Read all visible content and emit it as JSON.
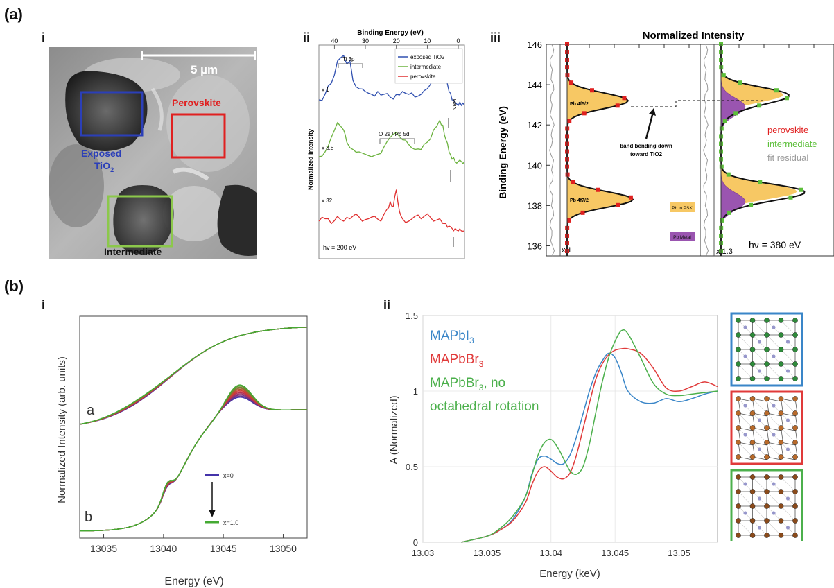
{
  "panel_labels": {
    "a": "(a)",
    "b": "(b)"
  },
  "sub_labels": {
    "ai": "i",
    "aii": "ii",
    "aiii": "iii",
    "bi": "i",
    "bii": "ii"
  },
  "micrograph": {
    "scale_bar": "5 µm",
    "regions": [
      {
        "label": "Exposed",
        "label2": "TiO",
        "sub": "2",
        "color": "#2b3fb8"
      },
      {
        "label": "Perovskite",
        "color": "#e02020"
      },
      {
        "label": "Intermediate",
        "color": "#8cc84b"
      }
    ]
  },
  "chart_data": [
    {
      "type": "line",
      "panel": "a-ii",
      "xlabel": "Binding Energy (eV)",
      "ylabel": "Normalized Intensity",
      "xlim": [
        45,
        -2
      ],
      "x_ticks": [
        40,
        30,
        20,
        10,
        0
      ],
      "legend": [
        "exposed TiO2",
        "intermediate",
        "perovskite"
      ],
      "legend_colors": [
        "#3050b0",
        "#6cb33f",
        "#e03030"
      ],
      "multipliers": [
        "x 1",
        "x 3.8",
        "x 32"
      ],
      "annotations": [
        "Ti 3p",
        "O 2s / Pb 5d",
        "VBM",
        "hv = 200 eV"
      ],
      "series": [
        {
          "name": "exposed TiO2",
          "color": "#3050b0",
          "x": [
            45,
            43,
            41,
            39,
            37,
            36,
            35,
            34,
            32,
            30,
            28,
            26,
            24,
            22,
            20,
            18,
            16,
            14,
            12,
            10,
            8,
            6,
            5,
            4,
            3,
            2,
            1,
            0,
            -1,
            -2
          ],
          "y": [
            0.2,
            0.3,
            0.5,
            0.9,
            1.0,
            0.85,
            0.9,
            0.55,
            0.4,
            0.35,
            0.3,
            0.35,
            0.3,
            0.25,
            0.3,
            0.35,
            0.3,
            0.25,
            0.3,
            0.4,
            0.6,
            0.8,
            0.75,
            0.6,
            0.35,
            0.2,
            0.15,
            0.1,
            0.1,
            0.1
          ]
        },
        {
          "name": "intermediate",
          "color": "#6cb33f",
          "x": [
            45,
            43,
            41,
            39,
            37,
            36,
            34,
            32,
            30,
            28,
            26,
            24,
            22,
            20,
            18,
            16,
            14,
            12,
            10,
            8,
            6,
            5,
            4,
            3,
            2,
            1,
            0,
            -1,
            -2
          ],
          "y": [
            0.2,
            0.3,
            0.6,
            0.9,
            0.75,
            0.5,
            0.35,
            0.3,
            0.25,
            0.2,
            0.25,
            0.4,
            0.6,
            0.7,
            0.55,
            0.45,
            0.35,
            0.35,
            0.5,
            0.75,
            0.95,
            0.85,
            0.55,
            0.3,
            0.15,
            0.1,
            0.1,
            0.1,
            0.1
          ]
        },
        {
          "name": "perovskite",
          "color": "#e03030",
          "x": [
            45,
            43,
            41,
            39,
            37,
            35,
            33,
            31,
            29,
            27,
            25,
            23,
            22,
            21,
            20,
            19,
            18,
            16,
            14,
            12,
            10,
            8,
            6,
            4,
            3,
            2,
            1,
            0,
            -1,
            -2
          ],
          "y": [
            0.3,
            0.35,
            0.25,
            0.4,
            0.3,
            0.35,
            0.45,
            0.3,
            0.35,
            0.4,
            0.3,
            0.55,
            0.7,
            0.6,
            0.95,
            0.5,
            0.35,
            0.3,
            0.4,
            0.35,
            0.45,
            0.3,
            0.35,
            0.25,
            0.2,
            0.15,
            0.15,
            0.1,
            0.1,
            0.1
          ]
        }
      ]
    },
    {
      "type": "area",
      "panel": "a-iii",
      "title": "Normalized Intensity",
      "ylabel": "Binding Energy (eV)",
      "ylim": [
        135.5,
        146
      ],
      "y_ticks": [
        136,
        138,
        140,
        142,
        144,
        146
      ],
      "legend": [
        "perovskite",
        "intermediate",
        "fit residual"
      ],
      "legend_colors": [
        "#e02020",
        "#5cbf3a",
        "#9a9a9a"
      ],
      "peak_labels": [
        "Pb 4f5/2",
        "Pb 4f7/2"
      ],
      "annotations": [
        "band bending down",
        "toward TiO2",
        "Pb in PSK",
        "Pb Metal"
      ],
      "multipliers": [
        "x 1",
        "x 1.3"
      ],
      "photon_energy": "hν = 380 eV",
      "left_peaks_be": [
        143.2,
        138.3
      ],
      "right_peaks_be": [
        143.5,
        138.7
      ],
      "right_metal_peaks_be": [
        142.9,
        138.2
      ]
    },
    {
      "type": "line",
      "panel": "b-i",
      "xlabel": "Energy (eV)",
      "ylabel": "Normalized Intensity (arb. units)",
      "xlim": [
        13033,
        13052
      ],
      "x_ticks": [
        13035,
        13040,
        13045,
        13050
      ],
      "curve_labels": [
        "a",
        "b"
      ],
      "legend": [
        "x=0",
        "x=1.0"
      ],
      "legend_colors": [
        "#4433aa",
        "#44aa33"
      ]
    },
    {
      "type": "line",
      "panel": "b-ii",
      "xlabel": "Energy (keV)",
      "ylabel": "A (Normalized)",
      "xlim": [
        13.03,
        13.053
      ],
      "ylim": [
        0,
        1.5
      ],
      "x_ticks": [
        13.03,
        13.035,
        13.04,
        13.045,
        13.05
      ],
      "x_tick_labels": [
        "13.03",
        "13.035",
        "13.04",
        "13.045",
        "13.05"
      ],
      "y_ticks": [
        0,
        0.5,
        1,
        1.5
      ],
      "y_tick_labels": [
        "0",
        "0.5",
        "1",
        "1.5"
      ],
      "legend": [
        {
          "text": "MAPbI",
          "sub": "3",
          "tail": "",
          "color": "#3a86c8"
        },
        {
          "text": "MAPbBr",
          "sub": "3",
          "tail": "",
          "color": "#e03a3a"
        },
        {
          "text": "MAPbBr",
          "sub": "3",
          "tail": ", no",
          "color": "#4cb04c"
        },
        {
          "text": "octahedral rotation",
          "sub": "",
          "tail": "",
          "color": "#4cb04c"
        }
      ],
      "series": [
        {
          "name": "MAPbI3",
          "color": "#3a86c8",
          "x": [
            13.033,
            13.035,
            13.036,
            13.037,
            13.038,
            13.0385,
            13.039,
            13.0395,
            13.04,
            13.0405,
            13.041,
            13.0415,
            13.042,
            13.0425,
            13.043,
            13.0435,
            13.044,
            13.0445,
            13.045,
            13.0455,
            13.046,
            13.047,
            13.048,
            13.049,
            13.05,
            13.051,
            13.052,
            13.053
          ],
          "y": [
            0,
            0.04,
            0.08,
            0.15,
            0.3,
            0.45,
            0.55,
            0.57,
            0.55,
            0.52,
            0.52,
            0.58,
            0.7,
            0.85,
            1.0,
            1.12,
            1.2,
            1.25,
            1.22,
            1.12,
            1.0,
            0.93,
            0.92,
            0.95,
            0.93,
            0.95,
            0.98,
            1.0
          ]
        },
        {
          "name": "MAPbBr3",
          "color": "#e03a3a",
          "x": [
            13.033,
            13.035,
            13.036,
            13.037,
            13.038,
            13.0385,
            13.039,
            13.0395,
            13.04,
            13.0405,
            13.041,
            13.0415,
            13.042,
            13.0425,
            13.043,
            13.0435,
            13.044,
            13.0445,
            13.045,
            13.0455,
            13.046,
            13.047,
            13.048,
            13.049,
            13.05,
            13.051,
            13.052,
            13.053
          ],
          "y": [
            0,
            0.04,
            0.08,
            0.14,
            0.26,
            0.38,
            0.47,
            0.5,
            0.47,
            0.43,
            0.42,
            0.46,
            0.58,
            0.75,
            0.92,
            1.08,
            1.18,
            1.24,
            1.27,
            1.28,
            1.28,
            1.25,
            1.15,
            1.02,
            1.0,
            1.03,
            1.06,
            1.03
          ]
        },
        {
          "name": "MAPbBr3, no octahedral rotation",
          "color": "#4cb04c",
          "x": [
            13.033,
            13.035,
            13.036,
            13.037,
            13.038,
            13.0385,
            13.039,
            13.0395,
            13.04,
            13.0405,
            13.041,
            13.0415,
            13.042,
            13.0425,
            13.043,
            13.0435,
            13.044,
            13.0445,
            13.045,
            13.0455,
            13.046,
            13.047,
            13.048,
            13.049,
            13.05,
            13.051,
            13.052,
            13.053
          ],
          "y": [
            0,
            0.04,
            0.09,
            0.17,
            0.3,
            0.44,
            0.58,
            0.66,
            0.68,
            0.63,
            0.55,
            0.47,
            0.45,
            0.5,
            0.65,
            0.86,
            1.06,
            1.22,
            1.33,
            1.4,
            1.38,
            1.22,
            1.05,
            0.98,
            0.97,
            0.98,
            0.99,
            1.0
          ]
        }
      ]
    }
  ],
  "structure_boxes": [
    {
      "color": "#3a86c8",
      "atom": "#2e8b3a"
    },
    {
      "color": "#e03a3a",
      "atom": "#b86a2a"
    },
    {
      "color": "#4cb04c",
      "atom": "#8a4a1a"
    }
  ]
}
